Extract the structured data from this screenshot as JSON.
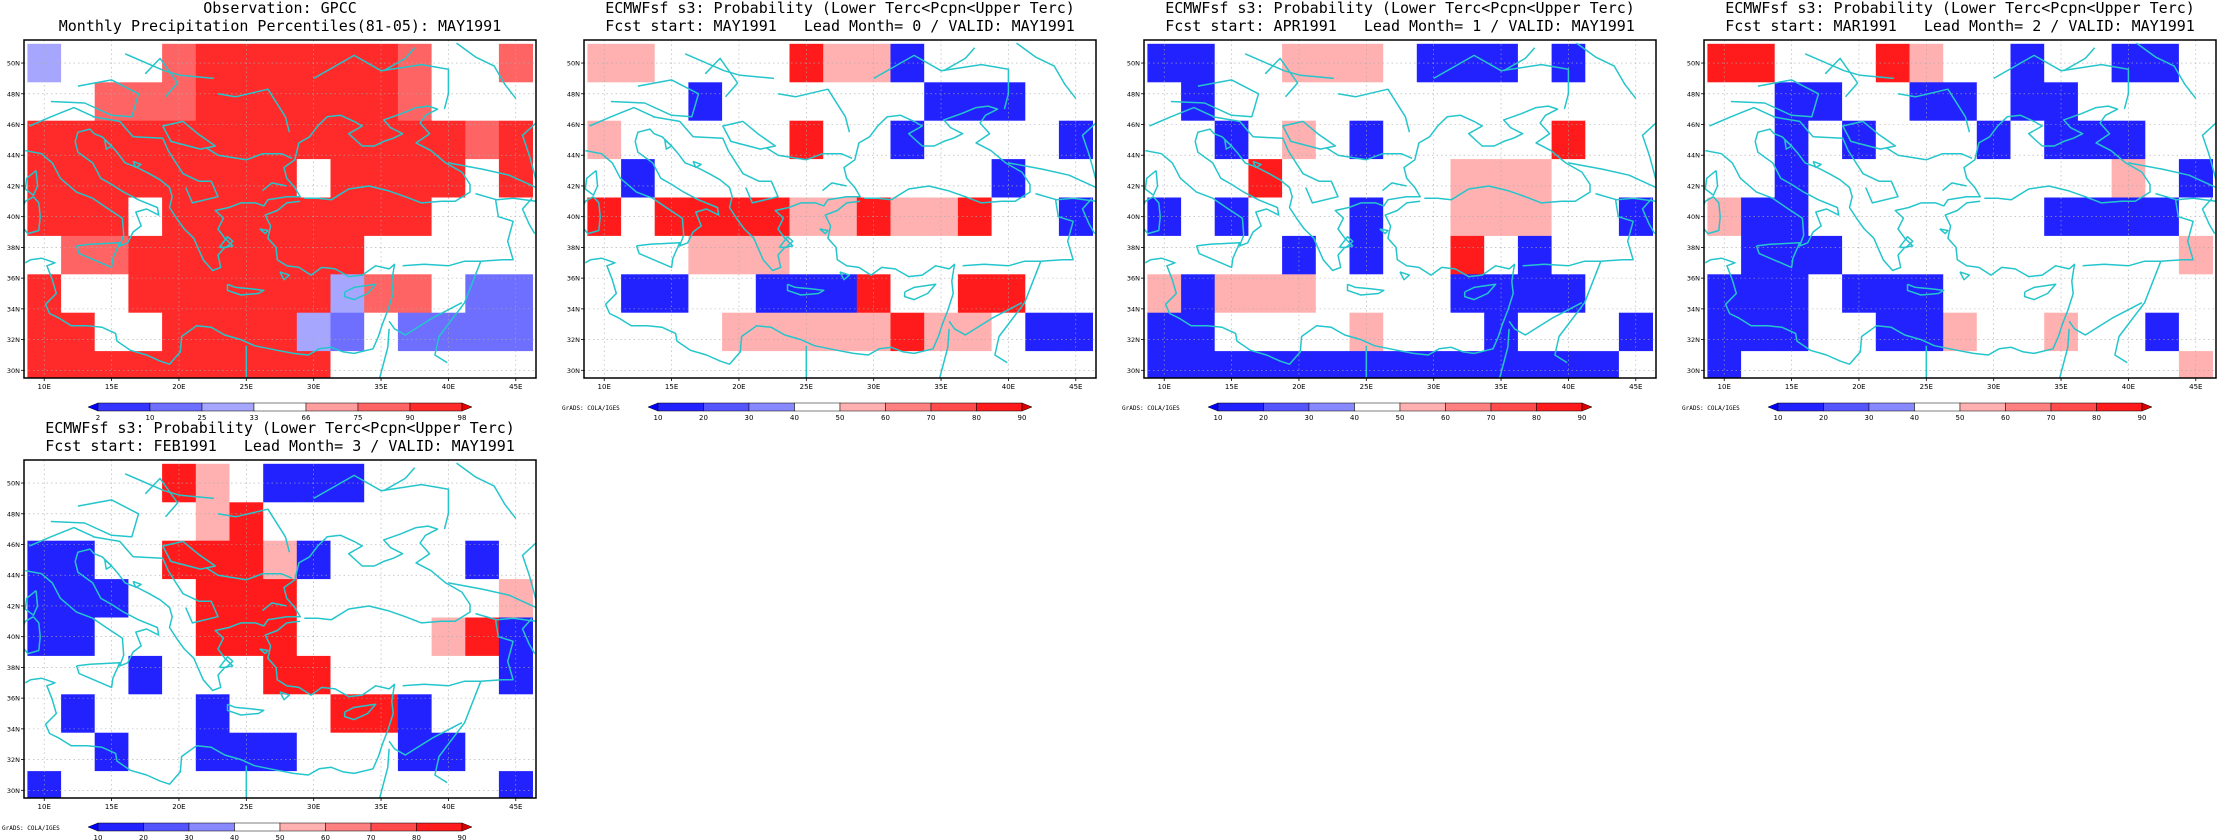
{
  "credit": "GrADS: COLA/IGES",
  "map": {
    "lon_labels": [
      "10E",
      "15E",
      "20E",
      "25E",
      "30E",
      "35E",
      "40E",
      "45E"
    ],
    "lat_labels": [
      "50N",
      "48N",
      "46N",
      "44N",
      "42N",
      "40N",
      "38N",
      "36N",
      "34N",
      "32N",
      "30N"
    ],
    "xlim": [
      8.5,
      46.5
    ],
    "ylim": [
      29.5,
      51.5
    ],
    "coastline_color": "#25c5cc",
    "gridline_color": "#aaaaaa"
  },
  "colorbars": {
    "percentile": {
      "labels": [
        "2",
        "10",
        "25",
        "33",
        "66",
        "75",
        "90",
        "98"
      ],
      "colors": [
        "#0000ff",
        "#3535ff",
        "#6e6eff",
        "#a6a6ff",
        "#ffffff",
        "#ff9e9e",
        "#ff6464",
        "#ff2a2a",
        "#e80000"
      ]
    },
    "probability": {
      "labels": [
        "10",
        "20",
        "30",
        "40",
        "50",
        "60",
        "70",
        "80",
        "90"
      ],
      "colors": [
        "#0000ff",
        "#2222ff",
        "#5555ff",
        "#8888ff",
        "#ffffff",
        "#ffb0b0",
        "#ff8080",
        "#ff4b4b",
        "#ff1b1b",
        "#d80000"
      ]
    }
  },
  "panels": [
    {
      "title1": "Observation: GPCC",
      "title2": "Monthly Precipitation Percentiles(81-05): MAY1991",
      "colorbar": "percentile",
      "chart_data": {
        "type": "heatmap",
        "x": [
          10,
          12.5,
          15,
          17.5,
          20,
          22.5,
          25,
          27.5,
          30,
          32.5,
          35,
          37.5,
          40,
          42.5,
          45
        ],
        "y": [
          50,
          47.5,
          45,
          42.5,
          40,
          37.5,
          35,
          32.5,
          30
        ],
        "rows": [
          [
            "B",
            "w",
            "w",
            "w",
            "M",
            "R",
            "R",
            "R",
            "R",
            "R",
            "R",
            "M",
            "w",
            "w",
            "M"
          ],
          [
            "w",
            "w",
            "M",
            "M",
            "M",
            "R",
            "R",
            "R",
            "R",
            "R",
            "R",
            "M",
            "w",
            "w",
            "w"
          ],
          [
            "R",
            "R",
            "R",
            "R",
            "R",
            "R",
            "R",
            "R",
            "R",
            "R",
            "R",
            "R",
            "R",
            "M",
            "R"
          ],
          [
            "R",
            "R",
            "R",
            "R",
            "R",
            "R",
            "R",
            "R",
            "w",
            "R",
            "R",
            "R",
            "R",
            "w",
            "R"
          ],
          [
            "R",
            "R",
            "R",
            "w",
            "R",
            "R",
            "R",
            "R",
            "R",
            "R",
            "R",
            "R",
            "w",
            "w",
            "w"
          ],
          [
            "w",
            "M",
            "M",
            "R",
            "R",
            "R",
            "R",
            "R",
            "R",
            "R",
            "w",
            "w",
            "w",
            "w",
            "w"
          ],
          [
            "R",
            "w",
            "w",
            "R",
            "R",
            "R",
            "R",
            "R",
            "R",
            "B",
            "M",
            "M",
            "w",
            "b",
            "b"
          ],
          [
            "R",
            "R",
            "w",
            "w",
            "R",
            "R",
            "R",
            "R",
            "B",
            "b",
            "w",
            "b",
            "b",
            "b",
            "b"
          ],
          [
            "R",
            "R",
            "R",
            "R",
            "R",
            "R",
            "R",
            "R",
            "R",
            "w",
            "w",
            "w",
            "w",
            "w",
            "w"
          ]
        ]
      }
    },
    {
      "title1": "ECMWFsf s3: Probability (Lower Terc<Pcpn<Upper Terc)",
      "title2": "Fcst start: MAY1991   Lead Month= 0 / VALID: MAY1991",
      "colorbar": "probability",
      "chart_data": {
        "type": "heatmap",
        "x": [
          10,
          12.5,
          15,
          17.5,
          20,
          22.5,
          25,
          27.5,
          30,
          32.5,
          35,
          37.5,
          40,
          42.5,
          45
        ],
        "y": [
          50,
          47.5,
          45,
          42.5,
          40,
          37.5,
          35,
          32.5,
          30
        ],
        "rows": [
          [
            "p",
            "p",
            "w",
            "w",
            "w",
            "w",
            "R",
            "p",
            "p",
            "B",
            "w",
            "w",
            "w",
            "w",
            "w"
          ],
          [
            "w",
            "w",
            "w",
            "B",
            "w",
            "w",
            "w",
            "w",
            "w",
            "w",
            "B",
            "B",
            "B",
            "w",
            "w"
          ],
          [
            "p",
            "w",
            "w",
            "w",
            "w",
            "w",
            "R",
            "w",
            "w",
            "B",
            "w",
            "w",
            "w",
            "w",
            "B"
          ],
          [
            "w",
            "B",
            "w",
            "w",
            "w",
            "w",
            "w",
            "w",
            "w",
            "w",
            "w",
            "w",
            "B",
            "w",
            "w"
          ],
          [
            "R",
            "w",
            "R",
            "R",
            "R",
            "R",
            "p",
            "p",
            "R",
            "p",
            "p",
            "R",
            "w",
            "w",
            "B"
          ],
          [
            "w",
            "w",
            "w",
            "p",
            "p",
            "p",
            "w",
            "w",
            "w",
            "w",
            "w",
            "w",
            "w",
            "w",
            "w"
          ],
          [
            "w",
            "B",
            "B",
            "w",
            "w",
            "B",
            "B",
            "B",
            "R",
            "w",
            "w",
            "R",
            "R",
            "w",
            "w"
          ],
          [
            "w",
            "w",
            "w",
            "w",
            "p",
            "p",
            "p",
            "p",
            "p",
            "R",
            "p",
            "p",
            "w",
            "B",
            "B"
          ],
          [
            "w",
            "w",
            "w",
            "w",
            "w",
            "w",
            "w",
            "w",
            "w",
            "w",
            "w",
            "w",
            "w",
            "w",
            "w"
          ]
        ]
      }
    },
    {
      "title1": "ECMWFsf s3: Probability (Lower Terc<Pcpn<Upper Terc)",
      "title2": "Fcst start: APR1991   Lead Month= 1 / VALID: MAY1991",
      "colorbar": "probability",
      "chart_data": {
        "type": "heatmap",
        "x": [
          10,
          12.5,
          15,
          17.5,
          20,
          22.5,
          25,
          27.5,
          30,
          32.5,
          35,
          37.5,
          40,
          42.5,
          45
        ],
        "y": [
          50,
          47.5,
          45,
          42.5,
          40,
          37.5,
          35,
          32.5,
          30
        ],
        "rows": [
          [
            "B",
            "B",
            "w",
            "w",
            "p",
            "p",
            "p",
            "w",
            "B",
            "B",
            "B",
            "w",
            "B",
            "w",
            "w"
          ],
          [
            "w",
            "B",
            "w",
            "w",
            "w",
            "w",
            "w",
            "w",
            "w",
            "w",
            "w",
            "w",
            "w",
            "w",
            "w"
          ],
          [
            "w",
            "w",
            "B",
            "w",
            "p",
            "w",
            "B",
            "w",
            "w",
            "w",
            "w",
            "w",
            "R",
            "w",
            "w"
          ],
          [
            "w",
            "w",
            "w",
            "R",
            "w",
            "w",
            "w",
            "w",
            "w",
            "p",
            "p",
            "p",
            "w",
            "w",
            "w"
          ],
          [
            "B",
            "w",
            "B",
            "w",
            "w",
            "w",
            "B",
            "w",
            "w",
            "p",
            "p",
            "p",
            "w",
            "w",
            "B"
          ],
          [
            "w",
            "w",
            "w",
            "w",
            "B",
            "w",
            "B",
            "w",
            "w",
            "R",
            "w",
            "B",
            "w",
            "w",
            "w"
          ],
          [
            "p",
            "B",
            "p",
            "p",
            "p",
            "w",
            "w",
            "w",
            "w",
            "B",
            "B",
            "B",
            "B",
            "w",
            "w"
          ],
          [
            "B",
            "B",
            "w",
            "w",
            "w",
            "w",
            "p",
            "w",
            "w",
            "w",
            "B",
            "w",
            "w",
            "w",
            "B"
          ],
          [
            "B",
            "B",
            "B",
            "B",
            "B",
            "B",
            "B",
            "B",
            "B",
            "B",
            "B",
            "B",
            "B",
            "B",
            "w"
          ]
        ]
      }
    },
    {
      "title1": "ECMWFsf s3: Probability (Lower Terc<Pcpn<Upper Terc)",
      "title2": "Fcst start: MAR1991   Lead Month= 2 / VALID: MAY1991",
      "colorbar": "probability",
      "chart_data": {
        "type": "heatmap",
        "x": [
          10,
          12.5,
          15,
          17.5,
          20,
          22.5,
          25,
          27.5,
          30,
          32.5,
          35,
          37.5,
          40,
          42.5,
          45
        ],
        "y": [
          50,
          47.5,
          45,
          42.5,
          40,
          37.5,
          35,
          32.5,
          30
        ],
        "rows": [
          [
            "R",
            "R",
            "w",
            "w",
            "w",
            "R",
            "p",
            "w",
            "w",
            "B",
            "w",
            "w",
            "B",
            "B",
            "w"
          ],
          [
            "w",
            "w",
            "B",
            "B",
            "w",
            "w",
            "B",
            "B",
            "w",
            "B",
            "B",
            "w",
            "w",
            "w",
            "w"
          ],
          [
            "w",
            "w",
            "B",
            "w",
            "B",
            "w",
            "w",
            "w",
            "B",
            "w",
            "B",
            "B",
            "B",
            "w",
            "w"
          ],
          [
            "w",
            "w",
            "B",
            "w",
            "w",
            "w",
            "w",
            "w",
            "w",
            "w",
            "w",
            "w",
            "p",
            "w",
            "B"
          ],
          [
            "p",
            "B",
            "B",
            "w",
            "w",
            "w",
            "w",
            "w",
            "w",
            "w",
            "B",
            "B",
            "B",
            "B",
            "w"
          ],
          [
            "w",
            "B",
            "B",
            "B",
            "w",
            "w",
            "w",
            "w",
            "w",
            "w",
            "w",
            "w",
            "w",
            "w",
            "p"
          ],
          [
            "B",
            "B",
            "B",
            "w",
            "B",
            "B",
            "B",
            "w",
            "w",
            "w",
            "w",
            "w",
            "w",
            "w",
            "w"
          ],
          [
            "B",
            "B",
            "B",
            "w",
            "w",
            "B",
            "B",
            "p",
            "w",
            "w",
            "p",
            "w",
            "w",
            "B",
            "w"
          ],
          [
            "B",
            "w",
            "w",
            "w",
            "w",
            "w",
            "w",
            "w",
            "w",
            "w",
            "w",
            "w",
            "w",
            "w",
            "p"
          ]
        ]
      }
    },
    {
      "title1": "ECMWFsf s3: Probability (Lower Terc<Pcpn<Upper Terc)",
      "title2": "Fcst start: FEB1991   Lead Month= 3 / VALID: MAY1991",
      "colorbar": "probability",
      "chart_data": {
        "type": "heatmap",
        "x": [
          10,
          12.5,
          15,
          17.5,
          20,
          22.5,
          25,
          27.5,
          30,
          32.5,
          35,
          37.5,
          40,
          42.5,
          45
        ],
        "y": [
          50,
          47.5,
          45,
          42.5,
          40,
          37.5,
          35,
          32.5,
          30
        ],
        "rows": [
          [
            "w",
            "w",
            "w",
            "w",
            "R",
            "p",
            "w",
            "B",
            "B",
            "B",
            "w",
            "w",
            "w",
            "w",
            "w"
          ],
          [
            "w",
            "w",
            "w",
            "w",
            "w",
            "p",
            "R",
            "w",
            "w",
            "w",
            "w",
            "w",
            "w",
            "w",
            "w"
          ],
          [
            "B",
            "B",
            "w",
            "w",
            "R",
            "R",
            "R",
            "p",
            "B",
            "w",
            "w",
            "w",
            "w",
            "B",
            "w"
          ],
          [
            "B",
            "B",
            "B",
            "w",
            "w",
            "R",
            "R",
            "R",
            "w",
            "w",
            "w",
            "w",
            "w",
            "w",
            "p"
          ],
          [
            "B",
            "B",
            "w",
            "w",
            "w",
            "R",
            "R",
            "R",
            "w",
            "w",
            "w",
            "w",
            "p",
            "R",
            "B"
          ],
          [
            "w",
            "w",
            "w",
            "B",
            "w",
            "w",
            "w",
            "R",
            "R",
            "w",
            "w",
            "w",
            "w",
            "w",
            "B"
          ],
          [
            "w",
            "B",
            "w",
            "w",
            "w",
            "B",
            "w",
            "w",
            "w",
            "R",
            "R",
            "B",
            "w",
            "w",
            "w"
          ],
          [
            "w",
            "w",
            "B",
            "w",
            "w",
            "B",
            "B",
            "B",
            "w",
            "w",
            "w",
            "B",
            "B",
            "w",
            "w"
          ],
          [
            "B",
            "w",
            "w",
            "w",
            "w",
            "w",
            "w",
            "w",
            "w",
            "w",
            "w",
            "w",
            "w",
            "w",
            "B"
          ]
        ]
      }
    }
  ]
}
